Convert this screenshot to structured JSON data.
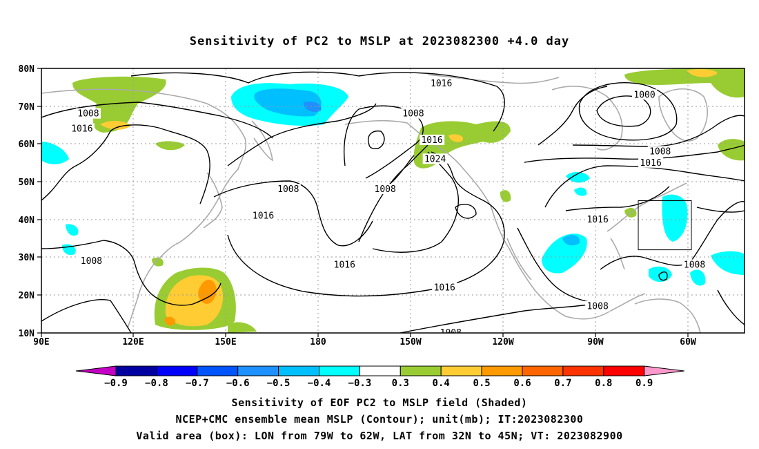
{
  "title": "Sensitivity of PC2 to MSLP at 2023082300 +4.0 day",
  "map": {
    "lat_ticks": [
      "80N",
      "70N",
      "60N",
      "50N",
      "40N",
      "30N",
      "20N",
      "10N"
    ],
    "lon_ticks": [
      "90E",
      "120E",
      "150E",
      "180",
      "150W",
      "120W",
      "90W",
      "60W"
    ],
    "extent": {
      "lon_min": 90,
      "lon_max": 315,
      "lat_min": 10,
      "lat_max": 80
    },
    "contour_labels": [
      {
        "text": "1016",
        "lon": 218,
        "lat": 76
      },
      {
        "text": "1008",
        "lon": 105,
        "lat": 68
      },
      {
        "text": "1016",
        "lon": 103,
        "lat": 64
      },
      {
        "text": "1008",
        "lon": 209,
        "lat": 68
      },
      {
        "text": "1016",
        "lon": 215,
        "lat": 61
      },
      {
        "text": "1024",
        "lon": 216,
        "lat": 56
      },
      {
        "text": "1008",
        "lon": 169,
        "lat": 48
      },
      {
        "text": "1008",
        "lon": 200,
        "lat": 48
      },
      {
        "text": "1016",
        "lon": 161,
        "lat": 41
      },
      {
        "text": "1016",
        "lon": 187,
        "lat": 28
      },
      {
        "text": "1008",
        "lon": 106,
        "lat": 29
      },
      {
        "text": "1016",
        "lon": 219,
        "lat": 22
      },
      {
        "text": "1008",
        "lon": 221,
        "lat": 10
      },
      {
        "text": "1000",
        "lon": 283,
        "lat": 73
      },
      {
        "text": "1008",
        "lon": 288,
        "lat": 58
      },
      {
        "text": "1016",
        "lon": 285,
        "lat": 55
      },
      {
        "text": "1016",
        "lon": 268,
        "lat": 40
      },
      {
        "text": "1008",
        "lon": 268,
        "lat": 17
      },
      {
        "text": "1008",
        "lon": 299,
        "lat": 28
      }
    ],
    "valid_box": {
      "lon_west": -79,
      "lon_east": -62,
      "lat_south": 32,
      "lat_north": 45
    }
  },
  "colorbar": {
    "colors": [
      "#c400c4",
      "#0000a0",
      "#0000ff",
      "#0055ff",
      "#1e90ff",
      "#00bfff",
      "#00ffff",
      "#ffffff",
      "#99cc33",
      "#ffcc33",
      "#ff9900",
      "#ff6600",
      "#ff3300",
      "#ff0000",
      "#ff99cc"
    ],
    "labels": [
      "−0.9",
      "−0.8",
      "−0.7",
      "−0.6",
      "−0.5",
      "−0.4",
      "−0.3",
      "0.3",
      "0.4",
      "0.5",
      "0.6",
      "0.7",
      "0.8",
      "0.9"
    ]
  },
  "footer": {
    "line1": "Sensitivity of EOF PC2 to MSLP field (Shaded)",
    "line2": "NCEP+CMC ensemble mean MSLP (Contour); unit(mb); IT:2023082300",
    "line3": "Valid area (box): LON from 79W to 62W, LAT from 32N to 45N; VT: 2023082900"
  }
}
